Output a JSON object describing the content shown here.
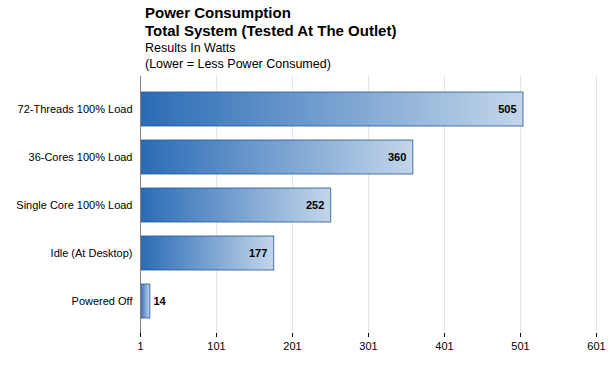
{
  "chart_data": {
    "type": "bar",
    "orientation": "horizontal",
    "title": [
      "Power Consumption",
      "Total System (Tested At The Outlet)"
    ],
    "subtitle": [
      "Results In Watts",
      "(Lower = Less Power Consumed)"
    ],
    "categories": [
      "72-Threads 100% Load",
      "36-Cores 100% Load",
      "Single Core 100% Load",
      "Idle (At Desktop)",
      "Powered Off"
    ],
    "values": [
      505,
      360,
      252,
      177,
      14
    ],
    "color": "#2a6bb5",
    "xlim": [
      1,
      601
    ],
    "xticks": [
      1,
      101,
      201,
      301,
      401,
      501,
      601
    ],
    "grid": true,
    "data_labels": true
  }
}
